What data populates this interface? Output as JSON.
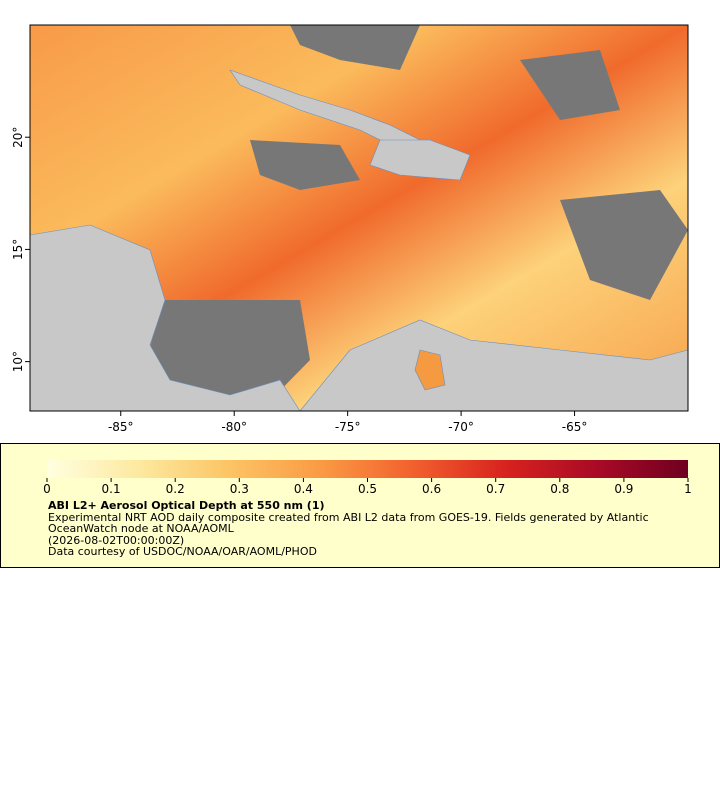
{
  "map": {
    "xlim": [
      -89,
      -60
    ],
    "ylim": [
      7.8,
      25
    ],
    "xticks": [
      {
        "value": -85,
        "label": "-85°"
      },
      {
        "value": -80,
        "label": "-80°"
      },
      {
        "value": -75,
        "label": "-75°"
      },
      {
        "value": -70,
        "label": "-70°"
      },
      {
        "value": -65,
        "label": "-65°"
      }
    ],
    "yticks": [
      {
        "value": 20,
        "label": "20°"
      },
      {
        "value": 15,
        "label": "15°"
      },
      {
        "value": 10,
        "label": "10°"
      }
    ]
  },
  "colorbar": {
    "lim": [
      0,
      1
    ],
    "ticks": [
      0,
      0.1,
      0.2,
      0.3,
      0.4,
      0.5,
      0.6,
      0.7,
      0.8,
      0.9,
      1
    ],
    "palette": [
      "#ffffe0",
      "#fde9a0",
      "#fcc464",
      "#fa9a44",
      "#f2602e",
      "#d8231e",
      "#a90a26",
      "#6f0020"
    ]
  },
  "legend": {
    "title": "ABI L2+ Aerosol Optical Depth at 550 nm (1)",
    "description": "Experimental NRT AOD daily composite created from ABI L2 data from GOES-19. Fields generated by Atlantic OceanWatch node at NOAA/AOML",
    "time": "(2026-08-02T00:00:00Z)",
    "credit": "Data courtesy of USDOC/NOAA/OAR/AOML/PHOD"
  }
}
